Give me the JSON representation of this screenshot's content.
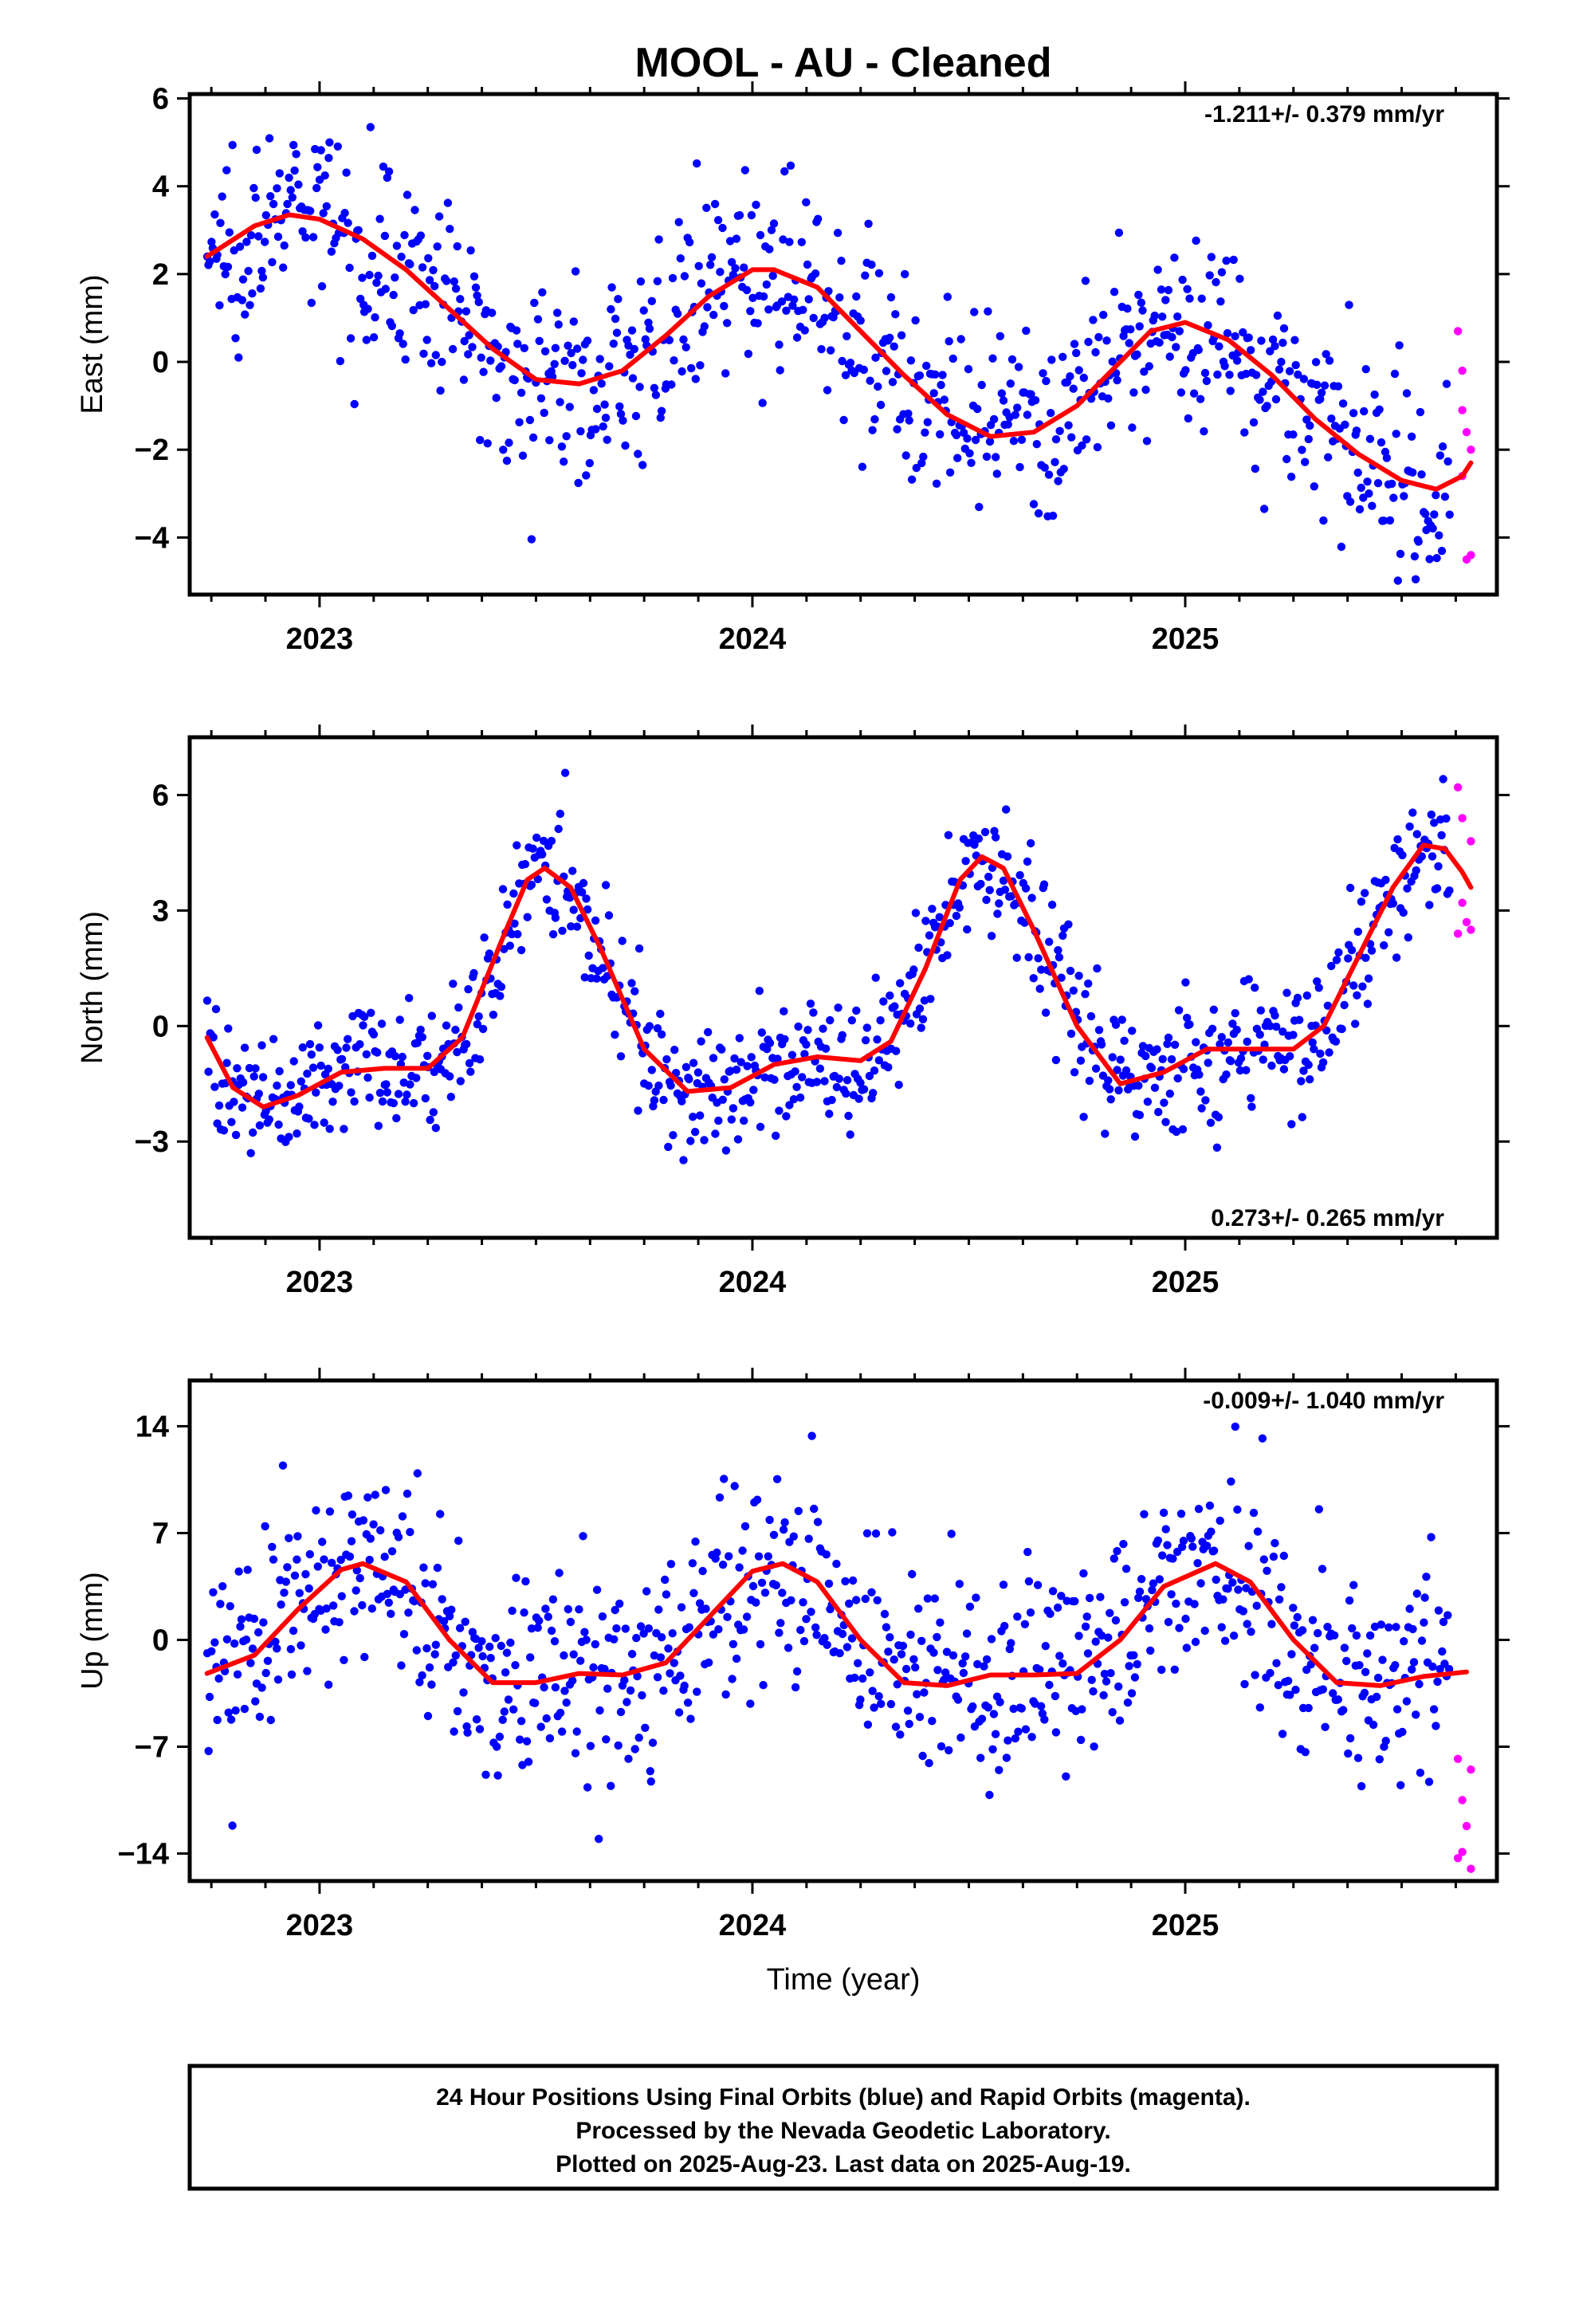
{
  "title": "MOOL  - AU - Cleaned",
  "colors": {
    "final": "#0000ff",
    "rapid": "#ff00ff",
    "fit": "#ff0000",
    "frame": "#000000"
  },
  "footer": [
    "24 Hour Positions Using Final Orbits (blue) and Rapid Orbits (magenta).",
    "Processed by the Nevada Geodetic Laboratory.",
    "Plotted on 2025-Aug-23. Last data on 2025-Aug-19."
  ],
  "chart_data": [
    {
      "type": "scatter",
      "ylabel": "East (mm)",
      "xlabel": "",
      "rate": "-1.211+/- 0.379 mm/yr",
      "xlim": [
        2022.7,
        2025.72
      ],
      "ylim": [
        -5.3,
        6.1
      ],
      "xticks": [
        2023,
        2024,
        2025
      ],
      "yticks": [
        -4,
        -2,
        0,
        2,
        4,
        6
      ],
      "ytick_labels": [
        "−4",
        "−2",
        "0",
        "2",
        "4",
        "6"
      ],
      "fit": [
        [
          2022.74,
          2.4
        ],
        [
          2022.85,
          3.1
        ],
        [
          2022.93,
          3.35
        ],
        [
          2023.0,
          3.25
        ],
        [
          2023.1,
          2.8
        ],
        [
          2023.2,
          2.1
        ],
        [
          2023.3,
          1.2
        ],
        [
          2023.4,
          0.3
        ],
        [
          2023.5,
          -0.4
        ],
        [
          2023.6,
          -0.5
        ],
        [
          2023.7,
          -0.2
        ],
        [
          2023.8,
          0.6
        ],
        [
          2023.9,
          1.5
        ],
        [
          2024.0,
          2.1
        ],
        [
          2024.05,
          2.1
        ],
        [
          2024.15,
          1.7
        ],
        [
          2024.25,
          0.7
        ],
        [
          2024.35,
          -0.3
        ],
        [
          2024.45,
          -1.2
        ],
        [
          2024.55,
          -1.7
        ],
        [
          2024.65,
          -1.6
        ],
        [
          2024.75,
          -1.0
        ],
        [
          2024.85,
          0.0
        ],
        [
          2024.92,
          0.7
        ],
        [
          2025.0,
          0.9
        ],
        [
          2025.1,
          0.5
        ],
        [
          2025.2,
          -0.3
        ],
        [
          2025.3,
          -1.3
        ],
        [
          2025.4,
          -2.1
        ],
        [
          2025.5,
          -2.7
        ],
        [
          2025.58,
          -2.9
        ],
        [
          2025.64,
          -2.6
        ],
        [
          2025.66,
          -2.3
        ]
      ],
      "final_points": {
        "count": 820,
        "x_range": [
          2022.74,
          2025.61
        ],
        "jitter": 1.1
      },
      "rapid_points": [
        [
          2025.63,
          0.7
        ],
        [
          2025.64,
          -0.2
        ],
        [
          2025.64,
          -1.1
        ],
        [
          2025.65,
          -1.6
        ],
        [
          2025.66,
          -2.0
        ],
        [
          2025.64,
          -2.6
        ],
        [
          2025.65,
          -4.5
        ],
        [
          2025.66,
          -4.4
        ]
      ]
    },
    {
      "type": "scatter",
      "ylabel": "North (mm)",
      "xlabel": "",
      "rate": "0.273+/- 0.265 mm/yr",
      "xlim": [
        2022.7,
        2025.72
      ],
      "ylim": [
        -5.5,
        7.5
      ],
      "xticks": [
        2023,
        2024,
        2025
      ],
      "yticks": [
        -3,
        0,
        3,
        6
      ],
      "ytick_labels": [
        "−3",
        "0",
        "3",
        "6"
      ],
      "fit": [
        [
          2022.74,
          -0.3
        ],
        [
          2022.8,
          -1.6
        ],
        [
          2022.87,
          -2.1
        ],
        [
          2022.95,
          -1.8
        ],
        [
          2023.05,
          -1.2
        ],
        [
          2023.15,
          -1.1
        ],
        [
          2023.25,
          -1.1
        ],
        [
          2023.33,
          -0.3
        ],
        [
          2023.42,
          2.2
        ],
        [
          2023.48,
          3.8
        ],
        [
          2023.52,
          4.1
        ],
        [
          2023.58,
          3.6
        ],
        [
          2023.65,
          2.0
        ],
        [
          2023.75,
          -0.6
        ],
        [
          2023.85,
          -1.7
        ],
        [
          2023.95,
          -1.6
        ],
        [
          2024.05,
          -1.0
        ],
        [
          2024.15,
          -0.8
        ],
        [
          2024.25,
          -0.9
        ],
        [
          2024.32,
          -0.4
        ],
        [
          2024.4,
          1.5
        ],
        [
          2024.48,
          3.8
        ],
        [
          2024.53,
          4.4
        ],
        [
          2024.58,
          4.1
        ],
        [
          2024.65,
          2.5
        ],
        [
          2024.75,
          0.0
        ],
        [
          2024.85,
          -1.5
        ],
        [
          2024.95,
          -1.2
        ],
        [
          2025.05,
          -0.6
        ],
        [
          2025.15,
          -0.6
        ],
        [
          2025.25,
          -0.6
        ],
        [
          2025.32,
          0.0
        ],
        [
          2025.4,
          1.8
        ],
        [
          2025.48,
          3.6
        ],
        [
          2025.55,
          4.7
        ],
        [
          2025.6,
          4.6
        ],
        [
          2025.64,
          4.0
        ],
        [
          2025.66,
          3.6
        ]
      ],
      "final_points": {
        "count": 820,
        "x_range": [
          2022.74,
          2025.61
        ],
        "jitter": 0.85
      },
      "rapid_points": [
        [
          2025.63,
          6.2
        ],
        [
          2025.64,
          5.4
        ],
        [
          2025.66,
          4.8
        ],
        [
          2025.64,
          3.2
        ],
        [
          2025.65,
          2.7
        ],
        [
          2025.66,
          2.5
        ],
        [
          2025.63,
          2.4
        ]
      ]
    },
    {
      "type": "scatter",
      "ylabel": "Up (mm)",
      "xlabel": "Time (year)",
      "rate": "-0.009+/- 1.040 mm/yr",
      "xlim": [
        2022.7,
        2025.72
      ],
      "ylim": [
        -15.8,
        17.0
      ],
      "xticks": [
        2023,
        2024,
        2025
      ],
      "yticks": [
        -14,
        -7,
        0,
        7,
        14
      ],
      "ytick_labels": [
        "−14",
        "−7",
        "0",
        "7",
        "14"
      ],
      "fit": [
        [
          2022.74,
          -2.2
        ],
        [
          2022.85,
          -1.0
        ],
        [
          2022.95,
          2.0
        ],
        [
          2023.05,
          4.6
        ],
        [
          2023.1,
          5.0
        ],
        [
          2023.2,
          3.8
        ],
        [
          2023.3,
          0.0
        ],
        [
          2023.4,
          -2.8
        ],
        [
          2023.5,
          -2.8
        ],
        [
          2023.6,
          -2.2
        ],
        [
          2023.7,
          -2.3
        ],
        [
          2023.8,
          -1.5
        ],
        [
          2023.9,
          1.5
        ],
        [
          2024.0,
          4.5
        ],
        [
          2024.07,
          5.0
        ],
        [
          2024.15,
          3.8
        ],
        [
          2024.25,
          0.0
        ],
        [
          2024.35,
          -2.8
        ],
        [
          2024.45,
          -3.0
        ],
        [
          2024.55,
          -2.3
        ],
        [
          2024.65,
          -2.3
        ],
        [
          2024.75,
          -2.2
        ],
        [
          2024.85,
          0.0
        ],
        [
          2024.95,
          3.5
        ],
        [
          2025.07,
          5.0
        ],
        [
          2025.15,
          3.8
        ],
        [
          2025.25,
          0.0
        ],
        [
          2025.35,
          -2.8
        ],
        [
          2025.45,
          -3.0
        ],
        [
          2025.55,
          -2.4
        ],
        [
          2025.65,
          -2.1
        ]
      ],
      "final_points": {
        "count": 820,
        "x_range": [
          2022.74,
          2025.61
        ],
        "jitter": 3.4
      },
      "rapid_points": [
        [
          2025.63,
          -7.8
        ],
        [
          2025.66,
          -8.5
        ],
        [
          2025.64,
          -10.5
        ],
        [
          2025.65,
          -12.2
        ],
        [
          2025.63,
          -14.3
        ],
        [
          2025.64,
          -13.9
        ],
        [
          2025.66,
          -15.0
        ]
      ]
    }
  ]
}
